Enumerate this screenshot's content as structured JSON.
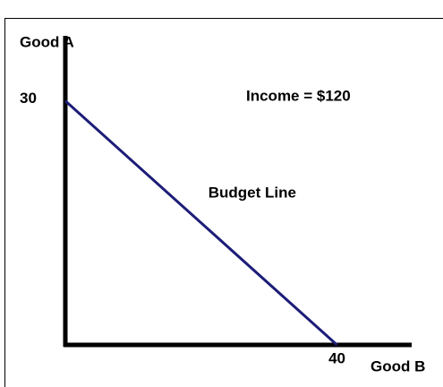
{
  "chart_data": {
    "type": "line",
    "x_label": "Good B",
    "y_label": "Good A",
    "x": [
      0,
      40
    ],
    "series": [
      {
        "name": "Budget Line",
        "color": "#1c1c78",
        "values": [
          30,
          0
        ]
      }
    ],
    "xlim": [
      0,
      51
    ],
    "ylim": [
      0,
      38
    ],
    "xticks": [
      40
    ],
    "yticks": [
      30
    ],
    "annotations": [
      "Income = $120"
    ]
  }
}
